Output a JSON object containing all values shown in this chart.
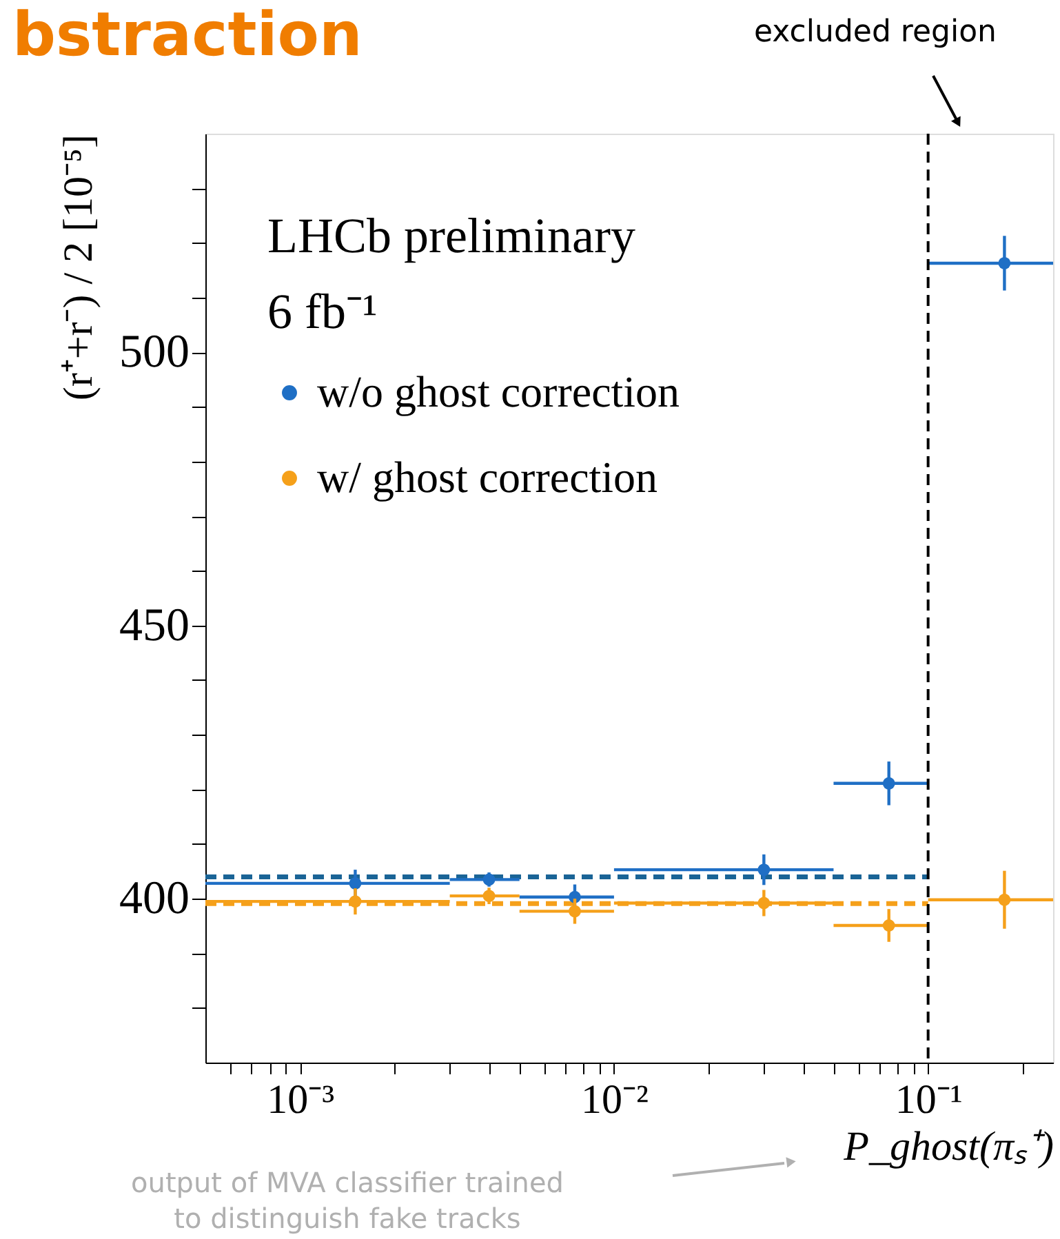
{
  "chart_data": {
    "type": "scatter",
    "title": "bstraction",
    "xlabel": "P_ghost(πₛ⁺)",
    "ylabel": "(r⁺+r⁻) / 2   [10⁻⁵]",
    "annotations": [
      "LHCb preliminary",
      "6 fb⁻¹",
      "excluded region",
      "output of MVA classifier trained\nto distinguish fake tracks"
    ],
    "xlim": [
      0.0005,
      0.25
    ],
    "ylim": [
      370,
      540
    ],
    "log": "x",
    "grid": false,
    "legend": "top left",
    "marker": "circle",
    "xticks": [
      {
        "value": 0.0006,
        "label": null
      },
      {
        "value": 0.0007,
        "label": null
      },
      {
        "value": 0.0008,
        "label": null
      },
      {
        "value": 0.0009,
        "label": null
      },
      {
        "value": 0.001,
        "label": "10⁻³"
      },
      {
        "value": 0.002,
        "label": null
      },
      {
        "value": 0.003,
        "label": null
      },
      {
        "value": 0.004,
        "label": null
      },
      {
        "value": 0.005,
        "label": null
      },
      {
        "value": 0.006,
        "label": null
      },
      {
        "value": 0.007,
        "label": null
      },
      {
        "value": 0.008,
        "label": null
      },
      {
        "value": 0.009,
        "label": null
      },
      {
        "value": 0.01,
        "label": "10⁻²"
      },
      {
        "value": 0.02,
        "label": null
      },
      {
        "value": 0.03,
        "label": null
      },
      {
        "value": 0.04,
        "label": null
      },
      {
        "value": 0.05,
        "label": null
      },
      {
        "value": 0.06,
        "label": null
      },
      {
        "value": 0.07,
        "label": null
      },
      {
        "value": 0.08,
        "label": null
      },
      {
        "value": 0.09,
        "label": null
      },
      {
        "value": 0.1,
        "label": "10⁻¹"
      },
      {
        "value": 0.2,
        "label": null
      }
    ],
    "yticks": [
      {
        "value": 380,
        "label": null
      },
      {
        "value": 390,
        "label": null
      },
      400,
      {
        "value": 410,
        "label": null
      },
      {
        "value": 420,
        "label": null
      },
      {
        "value": 430,
        "label": null
      },
      {
        "value": 440,
        "label": null
      },
      450,
      {
        "value": 460,
        "label": null
      },
      {
        "value": 470,
        "label": null
      },
      {
        "value": 480,
        "label": null
      },
      {
        "value": 490,
        "label": null
      },
      500,
      {
        "value": 510,
        "label": null
      },
      {
        "value": 520,
        "label": null
      },
      {
        "value": 530,
        "label": null
      }
    ],
    "ref_lines": [
      {
        "axis": "x",
        "value": 0.1,
        "label": null,
        "color": "#000000",
        "line_style": "dashed"
      }
    ],
    "series": [
      {
        "type": "line",
        "line_style": "dashed",
        "marker": "none",
        "color": "#1a6496",
        "x": [
          0.0005,
          0.1
        ],
        "values": [
          404.0,
          404.0
        ]
      },
      {
        "type": "line",
        "line_style": "dashed",
        "marker": "none",
        "color": "#f5a01a",
        "x": [
          0.0005,
          0.1
        ],
        "values": [
          399.1,
          399.1
        ]
      },
      {
        "type": "scatter",
        "name": "w/o ghost correction",
        "color": "#1f6fc5",
        "x": [
          0.0015,
          0.004,
          0.0075,
          0.03,
          0.075,
          0.175
        ],
        "values": [
          402.8,
          403.5,
          400.3,
          405.3,
          421.1,
          516.3
        ],
        "errors": [
          2.5,
          1.3,
          2.3,
          2.8,
          4.0,
          5.0
        ],
        "xerrors": [
          [
            0.0005,
            0.003
          ],
          [
            0.003,
            0.005
          ],
          [
            0.005,
            0.01
          ],
          [
            0.01,
            0.05
          ],
          [
            0.05,
            0.1
          ],
          [
            0.1,
            0.25
          ]
        ]
      },
      {
        "type": "scatter",
        "name": "w/ ghost correction",
        "color": "#f5a01a",
        "x": [
          0.0015,
          0.004,
          0.0075,
          0.03,
          0.075,
          0.175
        ],
        "values": [
          399.5,
          400.5,
          397.7,
          399.2,
          395.1,
          399.8
        ],
        "errors": [
          2.4,
          1.5,
          2.3,
          2.4,
          3.0,
          5.3
        ],
        "xerrors": [
          [
            0.0005,
            0.003
          ],
          [
            0.003,
            0.005
          ],
          [
            0.005,
            0.01
          ],
          [
            0.01,
            0.05
          ],
          [
            0.05,
            0.1
          ],
          [
            0.1,
            0.25
          ]
        ]
      }
    ]
  }
}
